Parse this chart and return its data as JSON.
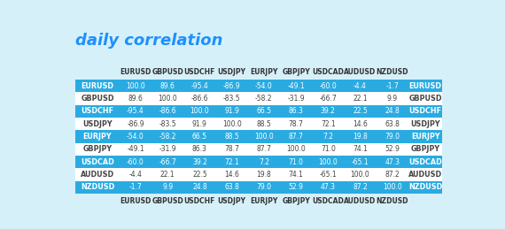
{
  "title": "daily correlation",
  "title_color": "#1E90FF",
  "title_fontsize": 13,
  "col_labels": [
    "EURUSD",
    "GBPUSD",
    "USDCHF",
    "USDJPY",
    "EURJPY",
    "GBPJPY",
    "USDCAD",
    "AUDUSD",
    "NZDUSD"
  ],
  "row_labels": [
    "EURUSD",
    "GBPUSD",
    "USDCHF",
    "USDJPY",
    "EURJPY",
    "GBPJPY",
    "USDCAD",
    "AUDUSD",
    "NZDUSD"
  ],
  "data": [
    [
      100.0,
      89.6,
      -95.4,
      -86.9,
      -54.0,
      -49.1,
      -60.0,
      -4.4,
      -1.7
    ],
    [
      89.6,
      100.0,
      -86.6,
      -83.5,
      -58.2,
      -31.9,
      -66.7,
      22.1,
      9.9
    ],
    [
      -95.4,
      -86.6,
      100.0,
      91.9,
      66.5,
      86.3,
      39.2,
      22.5,
      24.8
    ],
    [
      -86.9,
      -83.5,
      91.9,
      100.0,
      88.5,
      78.7,
      72.1,
      14.6,
      63.8
    ],
    [
      -54.0,
      -58.2,
      66.5,
      88.5,
      100.0,
      87.7,
      7.2,
      19.8,
      79.0
    ],
    [
      -49.1,
      -31.9,
      86.3,
      78.7,
      87.7,
      100.0,
      71.0,
      74.1,
      52.9
    ],
    [
      -60.0,
      -66.7,
      39.2,
      72.1,
      7.2,
      71.0,
      100.0,
      -65.1,
      47.3
    ],
    [
      -4.4,
      22.1,
      22.5,
      14.6,
      19.8,
      74.1,
      -65.1,
      100.0,
      87.2
    ],
    [
      -1.7,
      9.9,
      24.8,
      63.8,
      79.0,
      52.9,
      47.3,
      87.2,
      100.0
    ]
  ],
  "row_highlight": [
    0,
    2,
    4,
    6,
    8
  ],
  "bg_color": "#D6F0FA",
  "row_highlight_color": "#29ABE2",
  "row_normal_color": "#FFFFFF",
  "cell_text_color": "#444444",
  "highlight_text_color": "#FFFFFF",
  "header_text_color": "#333333"
}
